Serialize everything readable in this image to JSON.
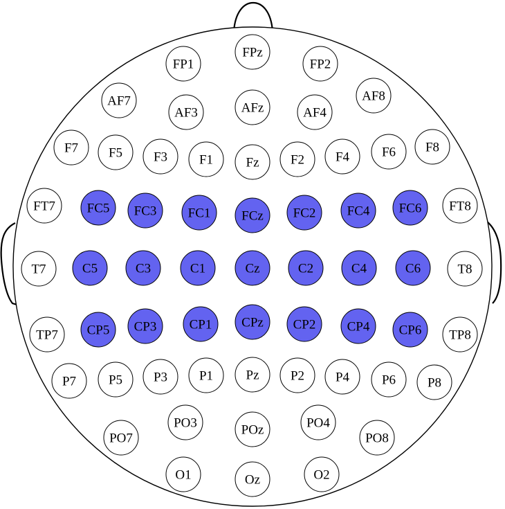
{
  "colors": {
    "selected_fill": "#6363f0",
    "unselected_fill": "#ffffff",
    "outline": "#000000"
  },
  "electrodes": [
    {
      "label": "FPz",
      "selected": false
    },
    {
      "label": "FP1",
      "selected": false
    },
    {
      "label": "FP2",
      "selected": false
    },
    {
      "label": "AF7",
      "selected": false
    },
    {
      "label": "AF8",
      "selected": false
    },
    {
      "label": "AF3",
      "selected": false
    },
    {
      "label": "AFz",
      "selected": false
    },
    {
      "label": "AF4",
      "selected": false
    },
    {
      "label": "F7",
      "selected": false
    },
    {
      "label": "F5",
      "selected": false
    },
    {
      "label": "F3",
      "selected": false
    },
    {
      "label": "F1",
      "selected": false
    },
    {
      "label": "Fz",
      "selected": false
    },
    {
      "label": "F2",
      "selected": false
    },
    {
      "label": "F4",
      "selected": false
    },
    {
      "label": "F6",
      "selected": false
    },
    {
      "label": "F8",
      "selected": false
    },
    {
      "label": "FT7",
      "selected": false
    },
    {
      "label": "FC5",
      "selected": true
    },
    {
      "label": "FC3",
      "selected": true
    },
    {
      "label": "FC1",
      "selected": true
    },
    {
      "label": "FCz",
      "selected": true
    },
    {
      "label": "FC2",
      "selected": true
    },
    {
      "label": "FC4",
      "selected": true
    },
    {
      "label": "FC6",
      "selected": true
    },
    {
      "label": "FT8",
      "selected": false
    },
    {
      "label": "T7",
      "selected": false
    },
    {
      "label": "C5",
      "selected": true
    },
    {
      "label": "C3",
      "selected": true
    },
    {
      "label": "C1",
      "selected": true
    },
    {
      "label": "Cz",
      "selected": true
    },
    {
      "label": "C2",
      "selected": true
    },
    {
      "label": "C4",
      "selected": true
    },
    {
      "label": "C6",
      "selected": true
    },
    {
      "label": "T8",
      "selected": false
    },
    {
      "label": "TP7",
      "selected": false
    },
    {
      "label": "CP5",
      "selected": true
    },
    {
      "label": "CP3",
      "selected": true
    },
    {
      "label": "CP1",
      "selected": true
    },
    {
      "label": "CPz",
      "selected": true
    },
    {
      "label": "CP2",
      "selected": true
    },
    {
      "label": "CP4",
      "selected": true
    },
    {
      "label": "CP6",
      "selected": true
    },
    {
      "label": "TP8",
      "selected": false
    },
    {
      "label": "P7",
      "selected": false
    },
    {
      "label": "P5",
      "selected": false
    },
    {
      "label": "P3",
      "selected": false
    },
    {
      "label": "P1",
      "selected": false
    },
    {
      "label": "Pz",
      "selected": false
    },
    {
      "label": "P2",
      "selected": false
    },
    {
      "label": "P4",
      "selected": false
    },
    {
      "label": "P6",
      "selected": false
    },
    {
      "label": "P8",
      "selected": false
    },
    {
      "label": "PO3",
      "selected": false
    },
    {
      "label": "POz",
      "selected": false
    },
    {
      "label": "PO4",
      "selected": false
    },
    {
      "label": "PO7",
      "selected": false
    },
    {
      "label": "PO8",
      "selected": false
    },
    {
      "label": "O1",
      "selected": false
    },
    {
      "label": "Oz",
      "selected": false
    },
    {
      "label": "O2",
      "selected": false
    }
  ]
}
